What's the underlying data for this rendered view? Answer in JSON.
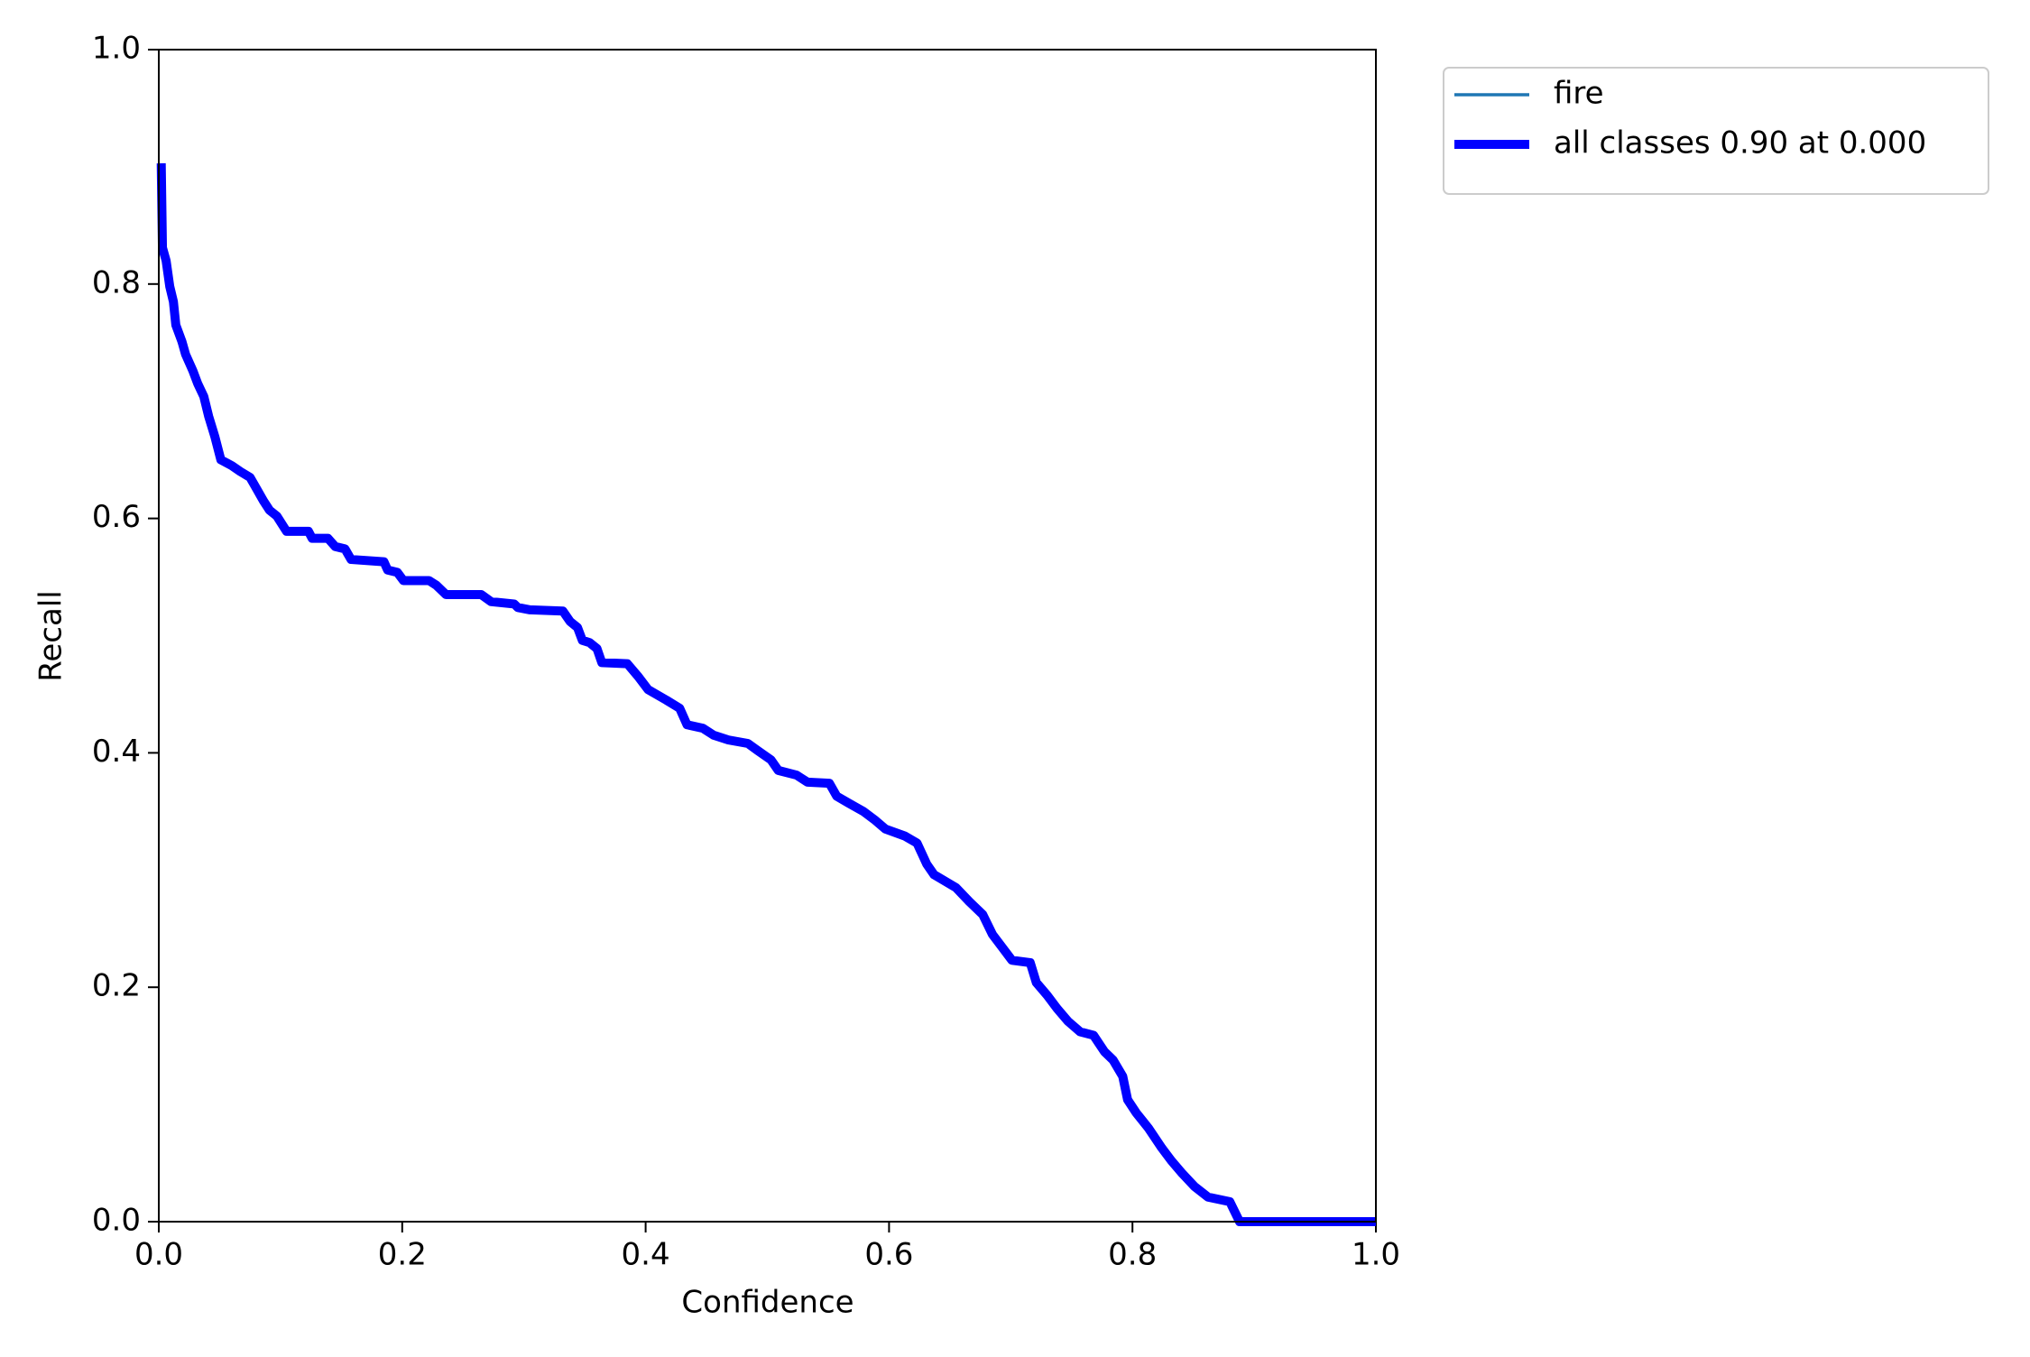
{
  "chart_data": {
    "type": "line",
    "x_label": "Confidence",
    "y_label": "Recall",
    "xlim": [
      0,
      1
    ],
    "ylim": [
      0,
      1
    ],
    "xticks": [
      {
        "value": 0,
        "label": "0.0"
      },
      0.2,
      0.4,
      0.6,
      0.8,
      {
        "value": 1,
        "label": "1.0"
      }
    ],
    "yticks": [
      {
        "value": 0,
        "label": "0.0"
      },
      0.2,
      0.4,
      0.6,
      0.8,
      {
        "value": 1,
        "label": "1.0"
      }
    ],
    "grid": false,
    "legend": "outside upper right",
    "x": [
      0.002,
      0.003,
      0.006,
      0.009,
      0.012,
      0.014,
      0.019,
      0.022,
      0.028,
      0.032,
      0.037,
      0.041,
      0.046,
      0.051,
      0.06,
      0.067,
      0.075,
      0.08,
      0.086,
      0.091,
      0.097,
      0.105,
      0.123,
      0.126,
      0.139,
      0.145,
      0.153,
      0.158,
      0.185,
      0.188,
      0.196,
      0.201,
      0.222,
      0.228,
      0.236,
      0.265,
      0.273,
      0.292,
      0.295,
      0.305,
      0.332,
      0.338,
      0.344,
      0.348,
      0.354,
      0.36,
      0.364,
      0.385,
      0.394,
      0.402,
      0.417,
      0.428,
      0.434,
      0.447,
      0.456,
      0.468,
      0.484,
      0.492,
      0.503,
      0.509,
      0.524,
      0.533,
      0.551,
      0.557,
      0.567,
      0.579,
      0.588,
      0.597,
      0.613,
      0.623,
      0.631,
      0.637,
      0.655,
      0.666,
      0.677,
      0.685,
      0.693,
      0.701,
      0.716,
      0.721,
      0.73,
      0.738,
      0.747,
      0.757,
      0.768,
      0.777,
      0.784,
      0.792,
      0.796,
      0.803,
      0.813,
      0.824,
      0.832,
      0.841,
      0.851,
      0.862,
      0.88,
      0.888,
      1.0
    ],
    "series": [
      {
        "name": "fire",
        "color": "#1f77b4",
        "line_width": 3.5,
        "values": [
          0.903,
          0.831,
          0.82,
          0.798,
          0.785,
          0.765,
          0.751,
          0.74,
          0.726,
          0.715,
          0.704,
          0.687,
          0.67,
          0.65,
          0.645,
          0.64,
          0.635,
          0.626,
          0.615,
          0.607,
          0.602,
          0.589,
          0.589,
          0.583,
          0.583,
          0.576,
          0.574,
          0.565,
          0.563,
          0.556,
          0.554,
          0.547,
          0.547,
          0.543,
          0.535,
          0.535,
          0.529,
          0.527,
          0.524,
          0.522,
          0.521,
          0.512,
          0.507,
          0.496,
          0.494,
          0.489,
          0.477,
          0.476,
          0.465,
          0.454,
          0.445,
          0.438,
          0.424,
          0.421,
          0.415,
          0.411,
          0.408,
          0.402,
          0.394,
          0.385,
          0.381,
          0.375,
          0.374,
          0.363,
          0.357,
          0.35,
          0.343,
          0.335,
          0.329,
          0.323,
          0.305,
          0.296,
          0.285,
          0.273,
          0.262,
          0.245,
          0.234,
          0.223,
          0.221,
          0.204,
          0.193,
          0.182,
          0.171,
          0.162,
          0.159,
          0.145,
          0.138,
          0.124,
          0.104,
          0.093,
          0.08,
          0.063,
          0.052,
          0.041,
          0.03,
          0.021,
          0.017,
          0,
          0
        ]
      },
      {
        "name": "all classes 0.90 at 0.000",
        "color": "#0000ff",
        "line_width": 10,
        "values": [
          0.903,
          0.831,
          0.82,
          0.798,
          0.785,
          0.765,
          0.751,
          0.74,
          0.726,
          0.715,
          0.704,
          0.687,
          0.67,
          0.65,
          0.645,
          0.64,
          0.635,
          0.626,
          0.615,
          0.607,
          0.602,
          0.589,
          0.589,
          0.583,
          0.583,
          0.576,
          0.574,
          0.565,
          0.563,
          0.556,
          0.554,
          0.547,
          0.547,
          0.543,
          0.535,
          0.535,
          0.529,
          0.527,
          0.524,
          0.522,
          0.521,
          0.512,
          0.507,
          0.496,
          0.494,
          0.489,
          0.477,
          0.476,
          0.465,
          0.454,
          0.445,
          0.438,
          0.424,
          0.421,
          0.415,
          0.411,
          0.408,
          0.402,
          0.394,
          0.385,
          0.381,
          0.375,
          0.374,
          0.363,
          0.357,
          0.35,
          0.343,
          0.335,
          0.329,
          0.323,
          0.305,
          0.296,
          0.285,
          0.273,
          0.262,
          0.245,
          0.234,
          0.223,
          0.221,
          0.204,
          0.193,
          0.182,
          0.171,
          0.162,
          0.159,
          0.145,
          0.138,
          0.124,
          0.104,
          0.093,
          0.08,
          0.063,
          0.052,
          0.041,
          0.03,
          0.021,
          0.017,
          0,
          0
        ]
      }
    ]
  }
}
